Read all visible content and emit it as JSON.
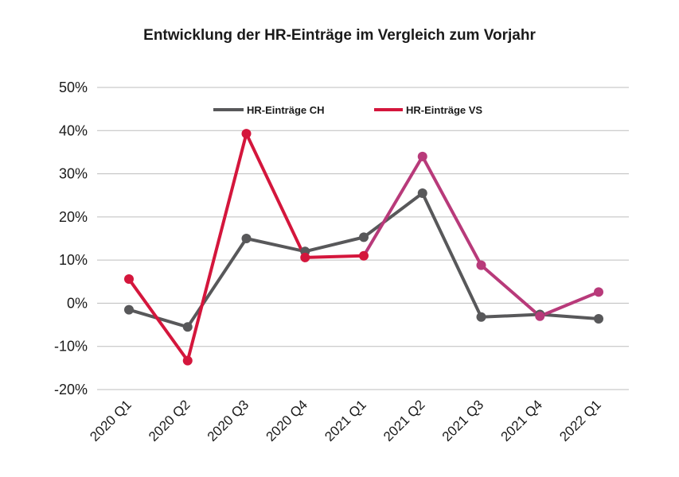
{
  "chart_data": {
    "type": "line",
    "title": "Entwicklung der HR-Einträge im Vergleich zum Vorjahr",
    "xlabel": "",
    "ylabel": "",
    "categories": [
      "2020 Q1",
      "2020 Q2",
      "2020 Q3",
      "2020 Q4",
      "2021 Q1",
      "2021 Q2",
      "2021 Q3",
      "2021 Q4",
      "2022 Q1"
    ],
    "ylim": [
      -20,
      50
    ],
    "yticks": [
      50,
      40,
      30,
      20,
      10,
      0,
      -10,
      -20
    ],
    "ytick_labels": [
      "50%",
      "40%",
      "30%",
      "20%",
      "10%",
      "0%",
      "-10%",
      "-20%"
    ],
    "grid": true,
    "legend_position": "top",
    "series": [
      {
        "name": "HR-Einträge CH",
        "color": "#58585a",
        "values": [
          -1.5,
          -5.5,
          15.0,
          12.0,
          15.3,
          25.5,
          -3.2,
          -2.6,
          -3.6
        ]
      },
      {
        "name": "HR-Einträge VS",
        "color": "#d4163c",
        "color_later": "#b83a7a",
        "values": [
          5.6,
          -13.3,
          39.3,
          10.6,
          11.0,
          34.0,
          8.8,
          -3.0,
          2.6
        ]
      }
    ]
  }
}
